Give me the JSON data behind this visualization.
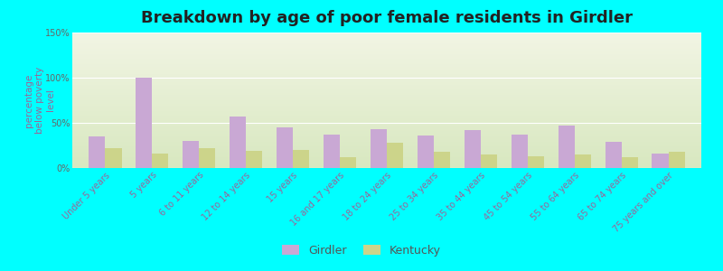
{
  "title": "Breakdown by age of poor female residents in Girdler",
  "ylabel": "percentage\nbelow poverty\nlevel",
  "categories": [
    "Under 5 years",
    "5 years",
    "6 to 11 years",
    "12 to 14 years",
    "15 years",
    "16 and 17 years",
    "18 to 24 years",
    "25 to 34 years",
    "35 to 44 years",
    "45 to 54 years",
    "55 to 64 years",
    "65 to 74 years",
    "75 years and over"
  ],
  "girdler_values": [
    35,
    100,
    30,
    57,
    45,
    37,
    43,
    36,
    42,
    37,
    47,
    29,
    16
  ],
  "kentucky_values": [
    22,
    16,
    22,
    19,
    20,
    12,
    28,
    18,
    15,
    13,
    15,
    12,
    18
  ],
  "girdler_color": "#c9a8d4",
  "kentucky_color": "#ccd48a",
  "plot_bg_top": "#d8e8c0",
  "plot_bg_bottom": "#f2f5e4",
  "ylim": [
    0,
    150
  ],
  "yticks": [
    0,
    50,
    100,
    150
  ],
  "ytick_labels": [
    "0%",
    "50%",
    "100%",
    "150%"
  ],
  "title_fontsize": 13,
  "axis_label_fontsize": 7.5,
  "tick_fontsize": 7,
  "legend_fontsize": 9,
  "bar_width": 0.35,
  "figsize": [
    8.0,
    3.0
  ],
  "dpi": 100,
  "outer_bg": "#00ffff"
}
